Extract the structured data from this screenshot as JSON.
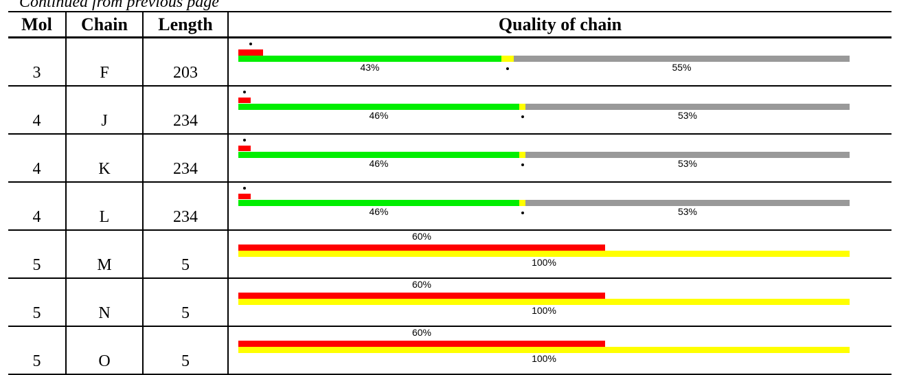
{
  "caption": "Continued from previous page",
  "colors": {
    "outlier": "#ff0000",
    "good": "#00ee00",
    "warn": "#ffff00",
    "missing": "#999999"
  },
  "headers": {
    "mol": "Mol",
    "chain": "Chain",
    "length": "Length",
    "quality": "Quality of chain"
  },
  "rows": [
    {
      "mol": "3",
      "chain": "F",
      "length": "203",
      "type": "full",
      "outlier_frac": 0.04,
      "good_frac": 0.43,
      "warn_frac": 0.02,
      "missing_frac": 0.55,
      "label_good": "43%",
      "label_missing": "55%"
    },
    {
      "mol": "4",
      "chain": "J",
      "length": "234",
      "type": "full",
      "outlier_frac": 0.02,
      "good_frac": 0.46,
      "warn_frac": 0.01,
      "missing_frac": 0.53,
      "label_good": "46%",
      "label_missing": "53%"
    },
    {
      "mol": "4",
      "chain": "K",
      "length": "234",
      "type": "full",
      "outlier_frac": 0.02,
      "good_frac": 0.46,
      "warn_frac": 0.01,
      "missing_frac": 0.53,
      "label_good": "46%",
      "label_missing": "53%"
    },
    {
      "mol": "4",
      "chain": "L",
      "length": "234",
      "type": "full",
      "outlier_frac": 0.02,
      "good_frac": 0.46,
      "warn_frac": 0.01,
      "missing_frac": 0.53,
      "label_good": "46%",
      "label_missing": "53%"
    },
    {
      "mol": "5",
      "chain": "M",
      "length": "5",
      "type": "short",
      "outlier_frac": 0.6,
      "warn_frac": 1.0,
      "label_outlier": "60%",
      "label_warn": "100%"
    },
    {
      "mol": "5",
      "chain": "N",
      "length": "5",
      "type": "short",
      "outlier_frac": 0.6,
      "warn_frac": 1.0,
      "label_outlier": "60%",
      "label_warn": "100%"
    },
    {
      "mol": "5",
      "chain": "O",
      "length": "5",
      "type": "short",
      "outlier_frac": 0.6,
      "warn_frac": 1.0,
      "label_outlier": "60%",
      "label_warn": "100%"
    }
  ]
}
